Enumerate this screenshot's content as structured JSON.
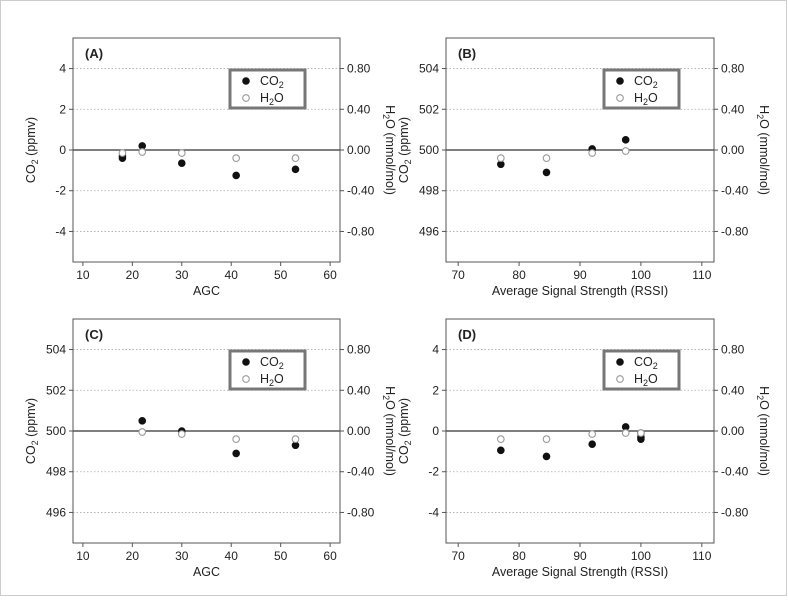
{
  "chart_data": [
    {
      "type": "scatter",
      "panel": "(A)",
      "xlabel": "AGC",
      "ylabel_left": {
        "main": "CO",
        "sub": "2",
        "rest": " (ppmv)"
      },
      "ylabel_right": {
        "main": "H",
        "sub": "2",
        "rest": "O (mmol/mol)"
      },
      "xlim": [
        8,
        62
      ],
      "xticks": [
        10,
        20,
        30,
        40,
        50,
        60
      ],
      "ylim_left": [
        -5.5,
        5.5
      ],
      "yticks_left": [
        -4,
        -2,
        0,
        2,
        4
      ],
      "ytick_labels_left": [
        "-4",
        "-2",
        "0",
        "2",
        "4"
      ],
      "ylim_right": [
        -1.1,
        1.1
      ],
      "yticks_right": [
        -0.8,
        -0.4,
        0,
        0.4,
        0.8
      ],
      "ytick_labels_right": [
        "-0.80",
        "-0.40",
        "0.00",
        "0.40",
        "0.80"
      ],
      "grid": "dotted horizontal",
      "legend_position": "top-right",
      "series": [
        {
          "name": {
            "main": "CO",
            "sub": "2"
          },
          "marker": "filled",
          "axis": "left",
          "x": [
            18,
            18,
            22,
            30,
            41,
            53
          ],
          "y": [
            -0.4,
            -0.3,
            0.2,
            -0.65,
            -1.25,
            -0.95
          ]
        },
        {
          "name": {
            "main": "H",
            "sub": "2",
            "rest": "O"
          },
          "marker": "open",
          "axis": "right",
          "x": [
            18,
            22,
            30,
            41,
            53
          ],
          "y": [
            -0.03,
            -0.02,
            -0.03,
            -0.08,
            -0.08
          ]
        }
      ]
    },
    {
      "type": "scatter",
      "panel": "(B)",
      "xlabel": "Average Signal Strength (RSSI)",
      "ylabel_left": {
        "main": "CO",
        "sub": "2",
        "rest": " (ppmv)"
      },
      "ylabel_right": {
        "main": "H",
        "sub": "2",
        "rest": "O (mmol/mol)"
      },
      "xlim": [
        68,
        112
      ],
      "xticks": [
        70,
        80,
        90,
        100,
        110
      ],
      "ylim_left": [
        494.5,
        505.5
      ],
      "yticks_left": [
        496,
        498,
        500,
        502,
        504
      ],
      "ytick_labels_left": [
        "496",
        "498",
        "500",
        "502",
        "504"
      ],
      "ylim_right": [
        -1.1,
        1.1
      ],
      "yticks_right": [
        -0.8,
        -0.4,
        0,
        0.4,
        0.8
      ],
      "ytick_labels_right": [
        "-0.80",
        "-0.40",
        "0.00",
        "0.40",
        "0.80"
      ],
      "grid": "dotted horizontal",
      "legend_position": "top-right",
      "series": [
        {
          "name": {
            "main": "CO",
            "sub": "2"
          },
          "marker": "filled",
          "axis": "left",
          "x": [
            77,
            84.5,
            92,
            97.5
          ],
          "y": [
            499.3,
            498.9,
            500.05,
            500.5
          ]
        },
        {
          "name": {
            "main": "H",
            "sub": "2",
            "rest": "O"
          },
          "marker": "open",
          "axis": "right",
          "x": [
            77,
            84.5,
            92,
            97.5
          ],
          "y": [
            -0.08,
            -0.08,
            -0.03,
            -0.01
          ]
        }
      ]
    },
    {
      "type": "scatter",
      "panel": "(C)",
      "xlabel": "AGC",
      "ylabel_left": {
        "main": "CO",
        "sub": "2",
        "rest": " (ppmv)"
      },
      "ylabel_right": {
        "main": "H",
        "sub": "2",
        "rest": "O (mmol/mol)"
      },
      "xlim": [
        8,
        62
      ],
      "xticks": [
        10,
        20,
        30,
        40,
        50,
        60
      ],
      "ylim_left": [
        494.5,
        505.5
      ],
      "yticks_left": [
        496,
        498,
        500,
        502,
        504
      ],
      "ytick_labels_left": [
        "496",
        "498",
        "500",
        "502",
        "504"
      ],
      "ylim_right": [
        -1.1,
        1.1
      ],
      "yticks_right": [
        -0.8,
        -0.4,
        0,
        0.4,
        0.8
      ],
      "ytick_labels_right": [
        "-0.80",
        "-0.40",
        "0.00",
        "0.40",
        "0.80"
      ],
      "grid": "dotted horizontal",
      "legend_position": "top-right",
      "series": [
        {
          "name": {
            "main": "CO",
            "sub": "2"
          },
          "marker": "filled",
          "axis": "left",
          "x": [
            22,
            30,
            41,
            53
          ],
          "y": [
            500.5,
            500.0,
            498.9,
            499.3
          ]
        },
        {
          "name": {
            "main": "H",
            "sub": "2",
            "rest": "O"
          },
          "marker": "open",
          "axis": "right",
          "x": [
            22,
            30,
            41,
            53
          ],
          "y": [
            -0.01,
            -0.03,
            -0.08,
            -0.08
          ]
        }
      ]
    },
    {
      "type": "scatter",
      "panel": "(D)",
      "xlabel": "Average Signal Strength (RSSI)",
      "ylabel_left": {
        "main": "CO",
        "sub": "2",
        "rest": " (ppmv)"
      },
      "ylabel_right": {
        "main": "H",
        "sub": "2",
        "rest": "O (mmol/mol)"
      },
      "xlim": [
        68,
        112
      ],
      "xticks": [
        70,
        80,
        90,
        100,
        110
      ],
      "ylim_left": [
        -5.5,
        5.5
      ],
      "yticks_left": [
        -4,
        -2,
        0,
        2,
        4
      ],
      "ytick_labels_left": [
        "-4",
        "-2",
        "0",
        "2",
        "4"
      ],
      "ylim_right": [
        -1.1,
        1.1
      ],
      "yticks_right": [
        -0.8,
        -0.4,
        0,
        0.4,
        0.8
      ],
      "ytick_labels_right": [
        "-0.80",
        "-0.40",
        "0.00",
        "0.40",
        "0.80"
      ],
      "grid": "dotted horizontal",
      "legend_position": "top-right",
      "series": [
        {
          "name": {
            "main": "CO",
            "sub": "2"
          },
          "marker": "filled",
          "axis": "left",
          "x": [
            77,
            84.5,
            92,
            97.5,
            100,
            100,
            100
          ],
          "y": [
            -0.95,
            -1.25,
            -0.65,
            0.2,
            -0.1,
            -0.3,
            -0.4
          ]
        },
        {
          "name": {
            "main": "H",
            "sub": "2",
            "rest": "O"
          },
          "marker": "open",
          "axis": "right",
          "x": [
            77,
            84.5,
            92,
            97.5,
            100
          ],
          "y": [
            -0.08,
            -0.08,
            -0.03,
            -0.02,
            -0.02
          ]
        }
      ]
    }
  ],
  "style": {
    "border_color": "#cccccc",
    "axis_color": "#555555",
    "zero_line_color": "#333333",
    "grid_color": "#aaaaaa",
    "marker_filled_color": "#111111",
    "marker_open_color": "#999999",
    "legend_border_color": "#777777"
  }
}
